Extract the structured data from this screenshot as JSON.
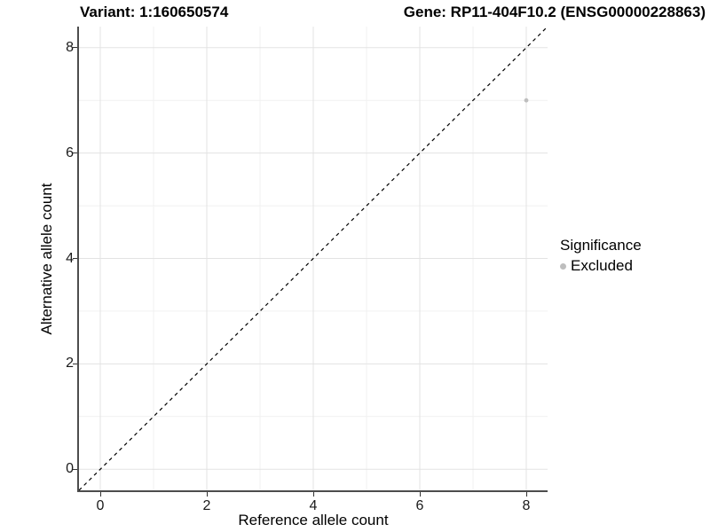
{
  "titles": {
    "variant": "Variant: 1:160650574",
    "gene": "Gene: RP11-404F10.2 (ENSG00000228863)"
  },
  "chart_data": {
    "type": "scatter",
    "title_left": "Variant: 1:160650574",
    "title_right": "Gene: RP11-404F10.2 (ENSG00000228863)",
    "xlabel": "Reference allele count",
    "ylabel": "Alternative allele count",
    "xlim": [
      -0.4,
      8.4
    ],
    "ylim": [
      -0.4,
      8.4
    ],
    "x_ticks": [
      0,
      2,
      4,
      6,
      8
    ],
    "y_ticks": [
      0,
      2,
      4,
      6,
      8
    ],
    "x_minor_ticks": [
      1,
      3,
      5,
      7
    ],
    "y_minor_ticks": [
      1,
      3,
      5,
      7
    ],
    "grid": true,
    "series": [
      {
        "name": "Excluded",
        "color": "#bebebe",
        "points": [
          {
            "x": 8,
            "y": 7
          }
        ]
      }
    ],
    "reference_line": {
      "type": "identity",
      "from": -0.4,
      "to": 8.4,
      "style": "dashed",
      "color": "#000000"
    },
    "legend": {
      "title": "Significance",
      "position": "right",
      "items": [
        {
          "label": "Excluded",
          "color": "#bebebe"
        }
      ]
    }
  },
  "colors": {
    "major_grid": "#e3e3e3",
    "minor_grid": "#f1f1f1",
    "axis_line": "#4d4d4d",
    "tick_mark": "#333333",
    "point": "#bebebe"
  }
}
